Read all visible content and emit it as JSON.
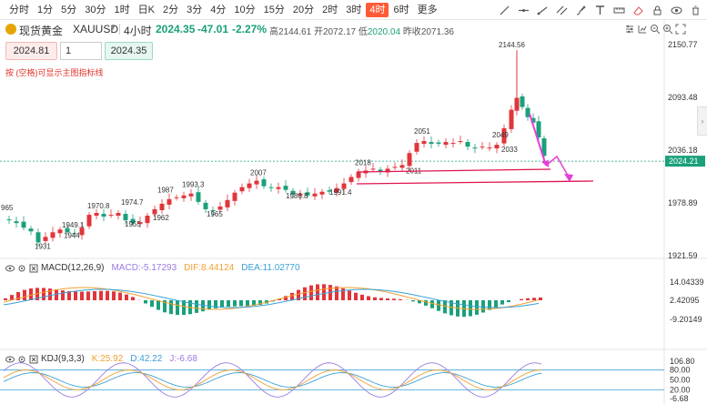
{
  "toolbar": {
    "periods": [
      {
        "label": "分时",
        "active": false
      },
      {
        "label": "1分",
        "active": false
      },
      {
        "label": "5分",
        "active": false
      },
      {
        "label": "30分",
        "active": false
      },
      {
        "label": "1时",
        "active": false
      },
      {
        "label": "日K",
        "active": false
      },
      {
        "label": "2分",
        "active": false
      },
      {
        "label": "3分",
        "active": false
      },
      {
        "label": "4分",
        "active": false
      },
      {
        "label": "10分",
        "active": false
      },
      {
        "label": "15分",
        "active": false
      },
      {
        "label": "20分",
        "active": false
      },
      {
        "label": "2时",
        "active": false
      },
      {
        "label": "3时",
        "active": false
      },
      {
        "label": "4时",
        "active": true
      },
      {
        "label": "6时",
        "active": false
      },
      {
        "label": "更多",
        "active": false
      }
    ],
    "tools": [
      "trend-line-icon",
      "horizontal-line-icon",
      "ray-icon",
      "parallel-channel-icon",
      "brush-icon",
      "text-icon",
      "measure-icon",
      "eraser-icon",
      "lock-icon",
      "visibility-icon",
      "delete-icon"
    ]
  },
  "header": {
    "symbol_name": "现货黄金",
    "symbol_code": "XAUUSD",
    "timeframe": "4小时",
    "price": "2024.35",
    "change": "-47.01",
    "change_pct": "-2.27%",
    "ohlc": [
      {
        "label": "高",
        "value": "2144.61"
      },
      {
        "label": "开",
        "value": "2072.17"
      },
      {
        "label": "低",
        "value": "2020.04"
      },
      {
        "label": "昨收",
        "value": "2071.36"
      }
    ]
  },
  "order": {
    "sell_price": "2024.81",
    "quantity": "1",
    "buy_price": "2024.35",
    "hint": "按 (空格)可显示主图指标线"
  },
  "price_axis": {
    "labels": [
      "2150.77",
      "2093.48",
      "2036.18",
      "1978.89",
      "1921.59"
    ],
    "current_price": "2024.21"
  },
  "price_annotations": [
    "2144.56",
    "2049",
    "2033",
    "2051",
    "2018",
    "2011",
    "2007",
    "1991.4",
    "1986.8",
    "1993.3",
    "1987",
    "1965",
    "1974.7",
    "1970.8",
    "1962",
    "1955",
    "1949.1",
    "1944",
    "1931",
    "965"
  ],
  "macd": {
    "name": "MACD(12,26,9)",
    "macd": "MACD:-5.17293",
    "dif": "DIF:8.44124",
    "dea": "DEA:11.02770",
    "axis": [
      "14.04339",
      "2.42095",
      "-9.20149"
    ]
  },
  "kdj": {
    "name": "KDJ(9,3,3)",
    "k": "K:25.92",
    "d": "D:42.22",
    "j": "J:-6.68",
    "axis": [
      "106.80",
      "80.00",
      "50.00",
      "20.00",
      "-6.68"
    ]
  },
  "colors": {
    "up": "#e2343a",
    "down": "#1aa07b",
    "accent": "#ff5a36",
    "annotation_line": "#e0144f",
    "arrow": "#e63fd6",
    "macd_dif": "#f0a030",
    "macd_dea": "#3aa0d6",
    "kdj_k": "#f0a030",
    "kdj_d": "#3aa0d6",
    "kdj_j": "#9b7be0"
  }
}
